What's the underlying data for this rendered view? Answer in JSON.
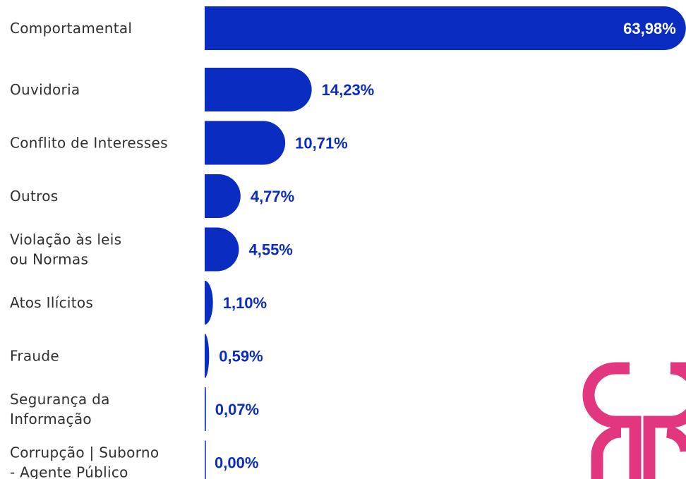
{
  "chart_data": {
    "type": "bar",
    "orientation": "horizontal",
    "categories": [
      "Comportamental",
      "Ouvidoria",
      "Conflito de Interesses",
      "Outros",
      "Violação às leis\nou Normas",
      "Atos Ilícitos",
      "Fraude",
      "Segurança da\nInformação",
      "Corrupção | Suborno\n- Agente Público"
    ],
    "values": [
      63.98,
      14.23,
      10.71,
      4.77,
      4.55,
      1.1,
      0.59,
      0.07,
      0.0
    ],
    "value_labels": [
      "63,98%",
      "14,23%",
      "10,71%",
      "4,77%",
      "4,55%",
      "1,10%",
      "0,59%",
      "0,07%",
      "0,00%"
    ],
    "color": "#0b2cc0",
    "xlim": [
      0,
      64
    ]
  }
}
